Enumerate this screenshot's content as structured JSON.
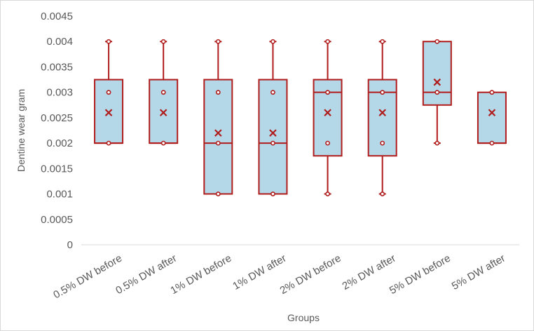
{
  "chart_data": {
    "type": "box",
    "title": "",
    "xlabel": "Groups",
    "ylabel": "Dentine wear gram",
    "ylim": [
      0,
      0.0045
    ],
    "yticks": [
      "0",
      "0.0005",
      "0.001",
      "0.0015",
      "0.002",
      "0.0025",
      "0.003",
      "0.0035",
      "0.004",
      "0.0045"
    ],
    "grid": false,
    "legend": "none",
    "colors": {
      "box_fill": "#b4d8e7",
      "box_stroke": "#b01c1c",
      "axis": "#d9d9d9",
      "text": "#595959"
    },
    "categories": [
      "0.5% DW before",
      "0.5% DW after",
      "1% DW before",
      "1% DW after",
      "2% DW before",
      "2% DW after",
      "5% DW before",
      "5% DW after"
    ],
    "boxes": [
      {
        "min": 0.002,
        "q1": 0.002,
        "median": 0.002,
        "q3": 0.00325,
        "max": 0.004,
        "mean": 0.0026,
        "points": [
          0.002,
          0.003,
          0.004
        ]
      },
      {
        "min": 0.002,
        "q1": 0.002,
        "median": 0.002,
        "q3": 0.00325,
        "max": 0.004,
        "mean": 0.0026,
        "points": [
          0.002,
          0.003,
          0.004
        ]
      },
      {
        "min": 0.001,
        "q1": 0.001,
        "median": 0.002,
        "q3": 0.00325,
        "max": 0.004,
        "mean": 0.0022,
        "points": [
          0.001,
          0.002,
          0.003,
          0.004
        ]
      },
      {
        "min": 0.001,
        "q1": 0.001,
        "median": 0.002,
        "q3": 0.00325,
        "max": 0.004,
        "mean": 0.0022,
        "points": [
          0.001,
          0.002,
          0.003,
          0.004
        ]
      },
      {
        "min": 0.001,
        "q1": 0.00175,
        "median": 0.003,
        "q3": 0.00325,
        "max": 0.004,
        "mean": 0.0026,
        "points": [
          0.001,
          0.002,
          0.003,
          0.004
        ]
      },
      {
        "min": 0.001,
        "q1": 0.00175,
        "median": 0.003,
        "q3": 0.00325,
        "max": 0.004,
        "mean": 0.0026,
        "points": [
          0.001,
          0.002,
          0.003,
          0.004
        ]
      },
      {
        "min": 0.002,
        "q1": 0.00275,
        "median": 0.003,
        "q3": 0.004,
        "max": 0.004,
        "mean": 0.0032,
        "points": [
          0.002,
          0.003,
          0.004
        ]
      },
      {
        "min": 0.002,
        "q1": 0.002,
        "median": 0.002,
        "q3": 0.003,
        "max": 0.003,
        "mean": 0.0026,
        "points": [
          0.002,
          0.003
        ]
      }
    ]
  }
}
